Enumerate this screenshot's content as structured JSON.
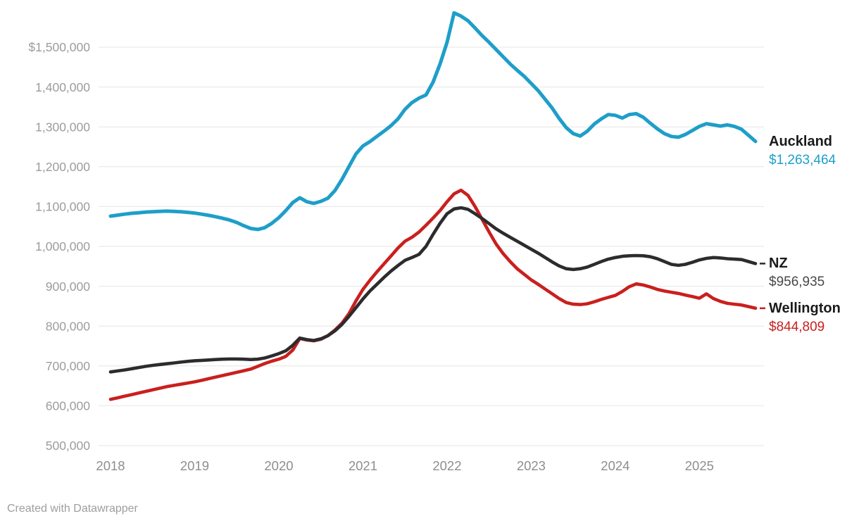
{
  "footer": {
    "credit": "Created with Datawrapper"
  },
  "colors": {
    "grid": "#e6e6e6",
    "y_axis_text": "#9c9c9c",
    "x_axis_text": "#8e8e8e",
    "label_name_text": "#1a1a1a"
  },
  "chart_data": {
    "type": "line",
    "title": "",
    "xlabel": "",
    "ylabel": "",
    "x_unit": "month",
    "x_start": "2018-01",
    "x_end": "2025-09",
    "ylim": [
      500000,
      1500000
    ],
    "grid": "horizontal-only",
    "legend_position": "right-end-labels",
    "y_ticks": [
      {
        "label": "$1,500,000",
        "value": 1500000
      },
      {
        "label": "1,400,000",
        "value": 1400000
      },
      {
        "label": "1,300,000",
        "value": 1300000
      },
      {
        "label": "1,200,000",
        "value": 1200000
      },
      {
        "label": "1,100,000",
        "value": 1100000
      },
      {
        "label": "1,000,000",
        "value": 1000000
      },
      {
        "label": "900,000",
        "value": 900000
      },
      {
        "label": "800,000",
        "value": 800000
      },
      {
        "label": "700,000",
        "value": 700000
      },
      {
        "label": "600,000",
        "value": 600000
      },
      {
        "label": "500,000",
        "value": 500000
      }
    ],
    "x_ticks": [
      {
        "label": "2018",
        "month_index": 0
      },
      {
        "label": "2019",
        "month_index": 12
      },
      {
        "label": "2020",
        "month_index": 24
      },
      {
        "label": "2021",
        "month_index": 36
      },
      {
        "label": "2022",
        "month_index": 48
      },
      {
        "label": "2023",
        "month_index": 60
      },
      {
        "label": "2024",
        "month_index": 72
      },
      {
        "label": "2025",
        "month_index": 84
      }
    ],
    "series": [
      {
        "name": "Auckland",
        "label_value": "$1,263,464",
        "end_value": 1263464,
        "color": "#1E9EC9",
        "value_color": "#1E9EC9",
        "dash_connector": false,
        "stroke_width": 5,
        "values": [
          1076000,
          1078500,
          1081000,
          1083000,
          1084500,
          1086000,
          1087000,
          1088000,
          1088500,
          1088000,
          1087000,
          1085500,
          1083500,
          1081000,
          1078000,
          1074500,
          1070500,
          1066000,
          1060000,
          1052000,
          1045000,
          1042500,
          1047000,
          1058000,
          1072000,
          1090000,
          1110000,
          1122000,
          1112000,
          1108000,
          1113000,
          1121000,
          1140000,
          1168000,
          1200000,
          1232000,
          1252000,
          1263000,
          1276000,
          1289000,
          1303000,
          1320000,
          1344000,
          1361000,
          1372000,
          1380000,
          1412000,
          1458000,
          1512000,
          1586000,
          1578000,
          1566000,
          1548000,
          1529000,
          1512000,
          1494000,
          1476000,
          1458000,
          1442000,
          1427000,
          1409000,
          1391000,
          1369000,
          1347000,
          1321000,
          1298000,
          1283000,
          1277000,
          1289000,
          1307000,
          1320000,
          1331000,
          1329000,
          1322000,
          1331000,
          1333000,
          1324000,
          1309000,
          1295000,
          1283000,
          1276000,
          1274000,
          1281000,
          1291000,
          1301000,
          1308000,
          1305000,
          1302000,
          1305000,
          1301000,
          1294000,
          1279000,
          1263464
        ]
      },
      {
        "name": "NZ",
        "label_value": "$956,935",
        "end_value": 956935,
        "color": "#2C2C2E",
        "value_color": "#484848",
        "dash_connector": true,
        "stroke_width": 4.6,
        "values": [
          685000,
          687500,
          690000,
          693000,
          696000,
          699000,
          701500,
          703500,
          705500,
          707500,
          709500,
          711500,
          713000,
          714000,
          715000,
          716000,
          717000,
          717500,
          717500,
          717000,
          716000,
          717000,
          720000,
          725000,
          731000,
          738000,
          752000,
          770000,
          766000,
          764000,
          768000,
          776000,
          788000,
          804000,
          824000,
          846000,
          868000,
          888000,
          905000,
          922000,
          938000,
          952000,
          965000,
          972000,
          980000,
          1000000,
          1030000,
          1058000,
          1082000,
          1094000,
          1097000,
          1093000,
          1082000,
          1070000,
          1057000,
          1044000,
          1033000,
          1023000,
          1013000,
          1003000,
          993000,
          983000,
          972000,
          961000,
          951000,
          944000,
          942000,
          944000,
          948000,
          955000,
          962000,
          968000,
          972000,
          975000,
          976500,
          977000,
          976500,
          974000,
          969000,
          962000,
          955000,
          952500,
          955000,
          960000,
          966000,
          970000,
          972000,
          971000,
          969000,
          968000,
          967000,
          962000,
          956935
        ]
      },
      {
        "name": "Wellington",
        "label_value": "$844,809",
        "end_value": 844809,
        "color": "#C9201E",
        "value_color": "#C9201E",
        "dash_connector": true,
        "stroke_width": 4.6,
        "values": [
          616000,
          620000,
          624000,
          628000,
          632000,
          636000,
          640000,
          644000,
          648000,
          651000,
          654000,
          657000,
          660000,
          664000,
          668000,
          672000,
          676000,
          680000,
          684000,
          688000,
          692000,
          699000,
          706000,
          712000,
          717000,
          724000,
          740000,
          769000,
          765000,
          763000,
          767000,
          776000,
          790000,
          807000,
          831000,
          863000,
          892000,
          915000,
          936000,
          956000,
          976000,
          996000,
          1013000,
          1023000,
          1036000,
          1053000,
          1071000,
          1090000,
          1112000,
          1132000,
          1141000,
          1128000,
          1100000,
          1068000,
          1036000,
          1006000,
          982000,
          962000,
          944000,
          930000,
          916000,
          905000,
          893000,
          881000,
          869000,
          859000,
          855000,
          854000,
          856000,
          861000,
          867000,
          872000,
          877000,
          887000,
          899000,
          906000,
          903000,
          898000,
          892000,
          888000,
          885000,
          882000,
          878000,
          874000,
          870000,
          881000,
          869000,
          862000,
          857000,
          855000,
          853000,
          849000,
          844809
        ]
      }
    ]
  }
}
